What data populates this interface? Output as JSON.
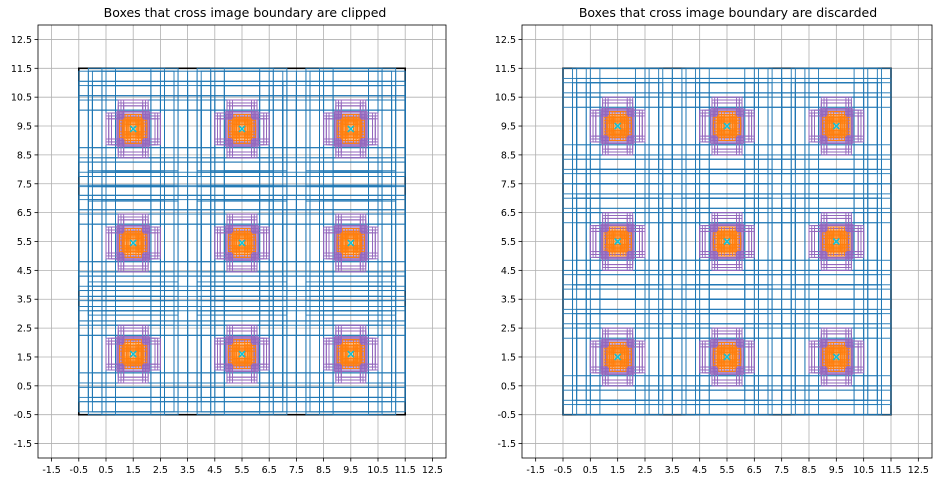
{
  "colors": {
    "grid": "#b0b0b0",
    "image_boundary": "#000000",
    "anchor_large": "#1f77b4",
    "anchor_medium": "#9467bd",
    "anchor_small": "#ff7f0e",
    "center_marker": "#17becf"
  },
  "chart_data": [
    {
      "type": "scatter",
      "title": "Boxes that cross image boundary are clipped",
      "xlim": [
        -2,
        13
      ],
      "ylim": [
        -2,
        13
      ],
      "xticks": [
        "-1.5",
        "-0.5",
        "0.5",
        "1.5",
        "2.5",
        "3.5",
        "4.5",
        "5.5",
        "6.5",
        "7.5",
        "8.5",
        "9.5",
        "10.5",
        "11.5",
        "12.5"
      ],
      "yticks": [
        "-1.5",
        "-0.5",
        "0.5",
        "1.5",
        "2.5",
        "3.5",
        "4.5",
        "5.5",
        "6.5",
        "7.5",
        "8.5",
        "9.5",
        "10.5",
        "11.5",
        "12.5"
      ],
      "grid": true,
      "image_boundary": [
        -0.5,
        -0.5,
        11.5,
        11.5
      ],
      "cell_centers_x": [
        1.5,
        5.5,
        9.5
      ],
      "cell_centers_y": [
        1.5,
        5.5,
        9.5
      ],
      "jitter": {
        "dx": [
          0.0,
          0.0,
          0.0
        ],
        "dy": [
          0.1,
          -0.05,
          -0.1
        ]
      },
      "anchors": {
        "large": [
          [
            3.0,
            3.0
          ],
          [
            4.0,
            2.3
          ],
          [
            2.3,
            4.0
          ]
        ],
        "medium": [
          [
            1.0,
            1.0
          ],
          [
            1.8,
            0.9
          ],
          [
            0.9,
            1.8
          ]
        ],
        "small": [
          [
            0.5,
            0.5
          ],
          [
            0.8,
            0.4
          ],
          [
            0.4,
            0.8
          ]
        ]
      },
      "boundary_mode": "clip"
    },
    {
      "type": "scatter",
      "title": "Boxes that cross image boundary are discarded",
      "xlim": [
        -2,
        13
      ],
      "ylim": [
        -2,
        13
      ],
      "xticks": [
        "-1.5",
        "-0.5",
        "0.5",
        "1.5",
        "2.5",
        "3.5",
        "4.5",
        "5.5",
        "6.5",
        "7.5",
        "8.5",
        "9.5",
        "10.5",
        "11.5",
        "12.5"
      ],
      "yticks": [
        "-1.5",
        "-0.5",
        "0.5",
        "1.5",
        "2.5",
        "3.5",
        "4.5",
        "5.5",
        "6.5",
        "7.5",
        "8.5",
        "9.5",
        "10.5",
        "11.5",
        "12.5"
      ],
      "grid": true,
      "image_boundary": [
        -0.5,
        -0.5,
        11.5,
        11.5
      ],
      "cell_centers_x": [
        1.5,
        5.5,
        9.5
      ],
      "cell_centers_y": [
        1.5,
        5.5,
        9.5
      ],
      "jitter": {
        "dx": [
          0.0,
          0.0,
          0.0
        ],
        "dy": [
          0.0,
          0.0,
          0.0
        ]
      },
      "anchors": {
        "large": [
          [
            3.0,
            3.0
          ],
          [
            4.0,
            2.3
          ],
          [
            2.3,
            4.0
          ]
        ],
        "medium": [
          [
            1.0,
            1.0
          ],
          [
            1.8,
            0.9
          ],
          [
            0.9,
            1.8
          ]
        ],
        "small": [
          [
            0.5,
            0.5
          ],
          [
            0.8,
            0.4
          ],
          [
            0.4,
            0.8
          ]
        ]
      },
      "boundary_mode": "discard"
    }
  ]
}
